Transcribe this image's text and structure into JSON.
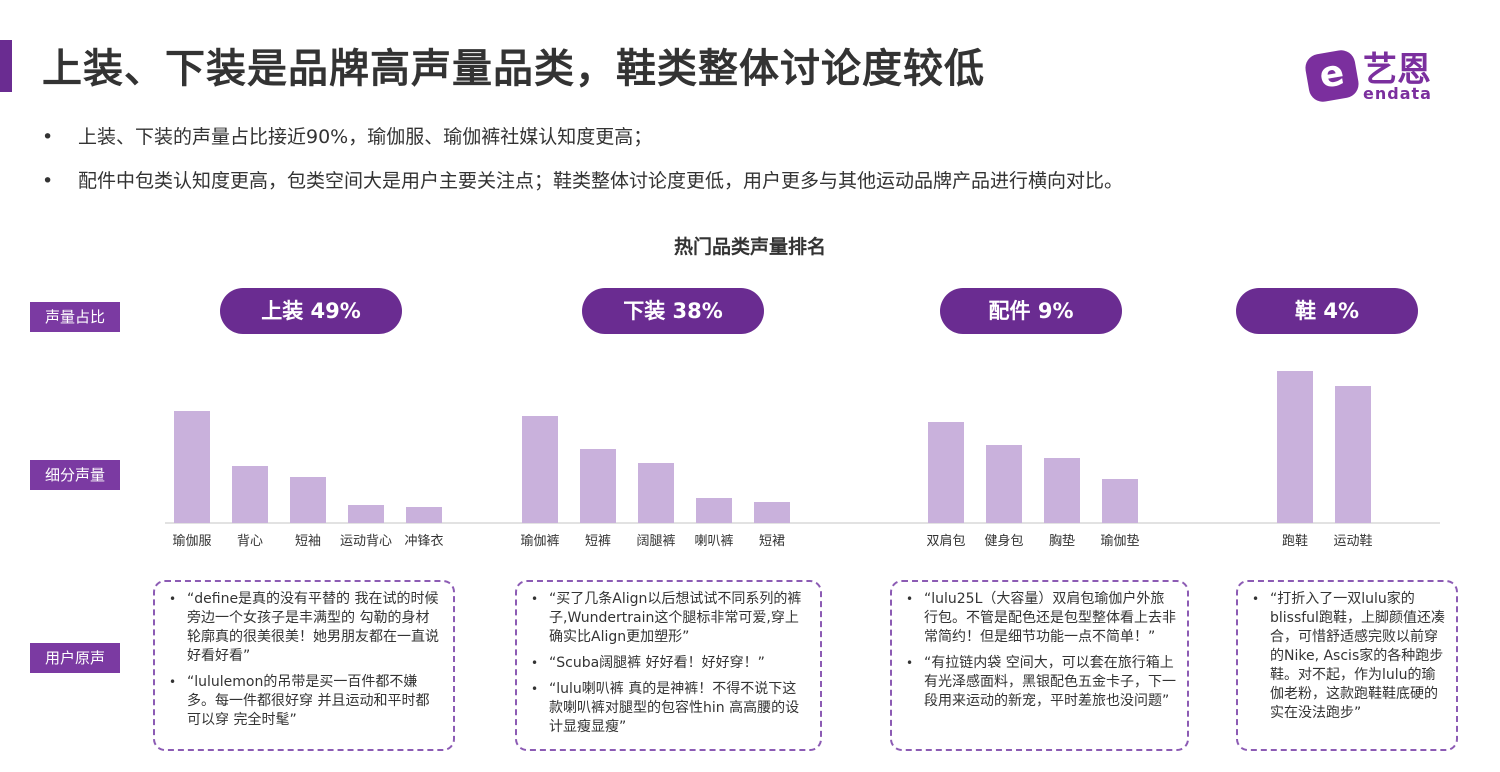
{
  "title": "上装、下装是品牌高声量品类，鞋类整体讨论度较低",
  "logo": {
    "mark": "e",
    "cn": "艺恩",
    "en": "endata"
  },
  "bullets": [
    "上装、下装的声量占比接近90%，瑜伽服、瑜伽裤社媒认知度更高；",
    "配件中包类认知度更高，包类空间大是用户主要关注点；鞋类整体讨论度更低，用户更多与其他运动品牌产品进行横向对比。"
  ],
  "row_labels": {
    "share": "声量占比",
    "sub": "细分声量",
    "voice": "用户原声"
  },
  "colors": {
    "accent": "#6a2c91",
    "bar": "#c9b1dc",
    "label_bg": "#7b3aa2",
    "dashed_border": "#8c5bb4",
    "baseline": "#d9d9d9"
  },
  "chart_data": {
    "type": "bar",
    "title": "热门品类声量排名",
    "groups": [
      {
        "name": "上装",
        "share": "49%",
        "categories": [
          "瑜伽服",
          "背心",
          "短袖",
          "运动背心",
          "冲锋衣"
        ],
        "values": [
          112,
          57,
          46,
          18,
          16
        ]
      },
      {
        "name": "下装",
        "share": "38%",
        "categories": [
          "瑜伽裤",
          "短裤",
          "阔腿裤",
          "喇叭裤",
          "短裙"
        ],
        "values": [
          107,
          74,
          60,
          25,
          21
        ]
      },
      {
        "name": "配件",
        "share": "9%",
        "categories": [
          "双肩包",
          "健身包",
          "胸垫",
          "瑜伽垫"
        ],
        "values": [
          101,
          78,
          65,
          44
        ]
      },
      {
        "name": "鞋",
        "share": "4%",
        "categories": [
          "跑鞋",
          "运动鞋"
        ],
        "values": [
          152,
          137
        ]
      }
    ],
    "ylim": [
      0,
      160
    ],
    "grid": false
  },
  "quotes": [
    [
      "“define是真的没有平替的 我在试的时候旁边一个女孩子是丰满型的 勾勒的身材轮廓真的很美很美！她男朋友都在一直说好看好看”",
      "“lululemon的吊带是买一百件都不嫌多。每一件都很好穿 并且运动和平时都可以穿 完全时髦”"
    ],
    [
      "“买了几条Align以后想试试不同系列的裤子,Wundertrain这个腿标非常可爱,穿上确实比Align更加塑形”",
      "“Scuba阔腿裤 好好看！好好穿！”",
      "“lulu喇叭裤 真的是神裤！不得不说下这款喇叭裤对腿型的包容性hin 高高腰的设计显瘦显瘦”"
    ],
    [
      "“lulu25L（大容量）双肩包瑜伽户外旅行包。不管是配色还是包型整体看上去非常简约！但是细节功能一点不简单！”",
      "“有拉链内袋 空间大，可以套在旅行箱上 有光泽感面料，黑银配色五金卡子，下一段用来运动的新宠，平时差旅也没问题”"
    ],
    [
      "“打折入了一双lulu家的blissful跑鞋，上脚颜值还凑合，可惜舒适感完败以前穿的Nike, Ascis家的各种跑步鞋。对不起，作为lulu的瑜伽老粉，这款跑鞋鞋底硬的实在没法跑步”"
    ]
  ]
}
